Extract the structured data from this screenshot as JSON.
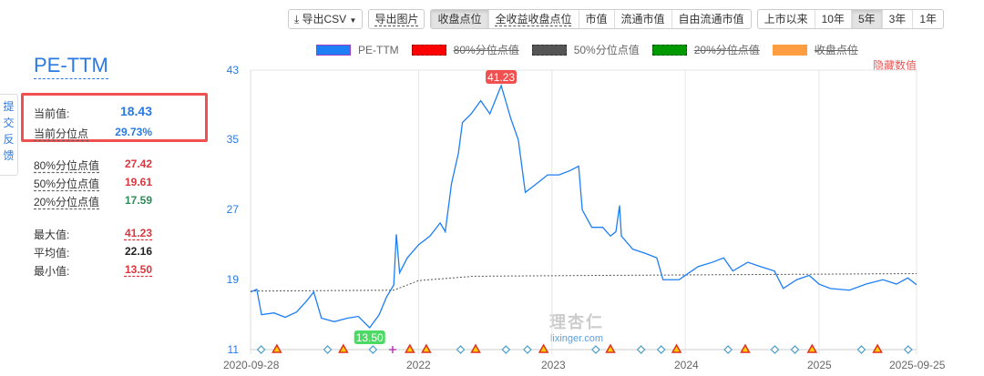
{
  "toolbar": {
    "export_csv": "导出CSV",
    "export_image": "导出图片",
    "metric_tabs": [
      "收盘点位",
      "全收益收盘点位",
      "市值",
      "流通市值",
      "自由流通市值"
    ],
    "metric_selected": "收盘点位",
    "range_tabs": [
      "上市以来",
      "10年",
      "5年",
      "3年",
      "1年"
    ],
    "range_selected": "5年"
  },
  "legend": [
    {
      "label": "PE-TTM",
      "color": "#1e7ef5",
      "enabled": true
    },
    {
      "label": "80%分位点值",
      "color": "#ff0000",
      "enabled": false
    },
    {
      "label": "50%分位点值",
      "color": "#555555",
      "enabled": true
    },
    {
      "label": "20%分位点值",
      "color": "#009900",
      "enabled": false
    },
    {
      "label": "收盘点位",
      "color": "#ff9933",
      "enabled": false
    }
  ],
  "hide_values": "隐藏数值",
  "feedback": "提交反馈",
  "panel": {
    "title": "PE-TTM",
    "current_label": "当前值:",
    "current_value": "18.43",
    "current_pct_label": "当前分位点",
    "current_pct_value": "29.73%",
    "p80_label": "80%分位点值",
    "p80_value": "27.42",
    "p50_label": "50%分位点值",
    "p50_value": "19.61",
    "p20_label": "20%分位点值",
    "p20_value": "17.59",
    "max_label": "最大值:",
    "max_value": "41.23",
    "avg_label": "平均值:",
    "avg_value": "22.16",
    "min_label": "最小值:",
    "min_value": "13.50"
  },
  "watermark": {
    "cn": "理杏仁",
    "en": "lixinger.com"
  },
  "chart_data": {
    "type": "line",
    "ylim": [
      11,
      43
    ],
    "yticks": [
      "43",
      "35",
      "27",
      "19",
      "11"
    ],
    "xrange": [
      "2020-09-28",
      "2025-09-25"
    ],
    "xticks": [
      "2020-09-28",
      "2022",
      "2023",
      "2024",
      "2025",
      "2025-09-25"
    ],
    "max_label": "41.23",
    "min_label": "13.50",
    "colors": {
      "pe": "#1e7ef5",
      "median": "#555555",
      "max": "#f05050",
      "min": "#4cd964"
    },
    "series": [
      {
        "name": "PE-TTM",
        "points": [
          [
            "2020-09-28",
            17.6
          ],
          [
            "2020-10-15",
            17.9
          ],
          [
            "2020-10-28",
            15.0
          ],
          [
            "2020-12-01",
            15.2
          ],
          [
            "2021-01-01",
            14.7
          ],
          [
            "2021-02-01",
            15.3
          ],
          [
            "2021-03-01",
            16.6
          ],
          [
            "2021-03-20",
            17.6
          ],
          [
            "2021-04-10",
            14.6
          ],
          [
            "2021-05-15",
            14.2
          ],
          [
            "2021-06-20",
            14.6
          ],
          [
            "2021-07-20",
            14.8
          ],
          [
            "2021-08-20",
            13.5
          ],
          [
            "2021-09-15",
            15.0
          ],
          [
            "2021-10-05",
            17.0
          ],
          [
            "2021-10-25",
            18.4
          ],
          [
            "2021-11-01",
            24.2
          ],
          [
            "2021-11-10",
            19.8
          ],
          [
            "2021-12-01",
            21.5
          ],
          [
            "2022-01-01",
            23.0
          ],
          [
            "2022-02-01",
            24.0
          ],
          [
            "2022-03-01",
            25.5
          ],
          [
            "2022-03-15",
            24.5
          ],
          [
            "2022-04-01",
            30.0
          ],
          [
            "2022-04-20",
            33.5
          ],
          [
            "2022-05-01",
            37.0
          ],
          [
            "2022-05-25",
            38.0
          ],
          [
            "2022-06-20",
            39.5
          ],
          [
            "2022-07-15",
            38.0
          ],
          [
            "2022-08-15",
            41.23
          ],
          [
            "2022-09-10",
            37.5
          ],
          [
            "2022-10-01",
            35.0
          ],
          [
            "2022-10-20",
            29.0
          ],
          [
            "2022-11-20",
            30.0
          ],
          [
            "2022-12-20",
            31.0
          ],
          [
            "2023-01-20",
            31.0
          ],
          [
            "2023-02-20",
            31.5
          ],
          [
            "2023-03-15",
            32.0
          ],
          [
            "2023-03-25",
            27.0
          ],
          [
            "2023-04-20",
            25.0
          ],
          [
            "2023-05-20",
            25.0
          ],
          [
            "2023-06-10",
            24.0
          ],
          [
            "2023-06-25",
            24.5
          ],
          [
            "2023-07-05",
            27.5
          ],
          [
            "2023-07-10",
            24.0
          ],
          [
            "2023-08-10",
            22.5
          ],
          [
            "2023-09-15",
            22.0
          ],
          [
            "2023-10-15",
            21.5
          ],
          [
            "2023-11-01",
            19.0
          ],
          [
            "2023-12-15",
            19.0
          ],
          [
            "2024-01-01",
            19.5
          ],
          [
            "2024-02-05",
            20.5
          ],
          [
            "2024-03-15",
            21.0
          ],
          [
            "2024-04-15",
            21.5
          ],
          [
            "2024-05-10",
            20.0
          ],
          [
            "2024-06-20",
            21.0
          ],
          [
            "2024-07-25",
            20.5
          ],
          [
            "2024-09-01",
            20.0
          ],
          [
            "2024-09-25",
            18.0
          ],
          [
            "2024-11-01",
            19.0
          ],
          [
            "2024-12-05",
            19.5
          ],
          [
            "2025-01-01",
            18.5
          ],
          [
            "2025-02-01",
            18.0
          ],
          [
            "2025-03-25",
            17.8
          ],
          [
            "2025-05-10",
            18.5
          ],
          [
            "2025-06-25",
            19.0
          ],
          [
            "2025-08-01",
            18.5
          ],
          [
            "2025-09-01",
            19.2
          ],
          [
            "2025-09-25",
            18.43
          ]
        ]
      },
      {
        "name": "50%分位点值",
        "points": [
          [
            "2020-09-28",
            17.7
          ],
          [
            "2021-10-25",
            17.8
          ],
          [
            "2022-01-01",
            18.9
          ],
          [
            "2022-06-01",
            19.4
          ],
          [
            "2023-06-01",
            19.5
          ],
          [
            "2025-09-25",
            19.7
          ]
        ]
      }
    ],
    "events": {
      "diamond": [
        "2020-10-27",
        "2021-04-27",
        "2021-08-29",
        "2022-04-26",
        "2022-08-28",
        "2022-10-26",
        "2023-05-01",
        "2023-09-02",
        "2023-10-27",
        "2024-04-27",
        "2024-09-02",
        "2024-10-27",
        "2025-04-27",
        "2025-09-02"
      ],
      "triangle": [
        "2020-12-09",
        "2021-06-09",
        "2021-12-08",
        "2022-01-22",
        "2022-06-06",
        "2022-12-09",
        "2023-06-10",
        "2023-12-08",
        "2024-06-13",
        "2024-12-13",
        "2025-06-10"
      ],
      "plus": [
        "2021-10-22"
      ]
    }
  }
}
